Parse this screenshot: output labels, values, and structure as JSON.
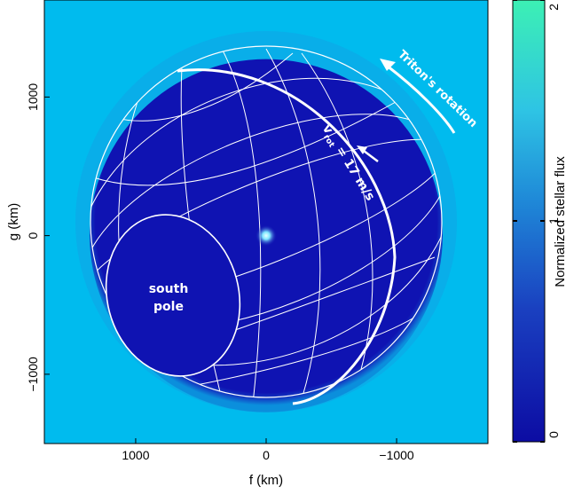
{
  "chart_data": {
    "type": "heatmap",
    "title": "",
    "xlabel": "f (km)",
    "ylabel": "g (km)",
    "xlim": [
      1700,
      -1700
    ],
    "ylim": [
      -1500,
      1700
    ],
    "x_ticks": [
      1000,
      0,
      -1000
    ],
    "y_ticks": [
      1000,
      0,
      -1000
    ],
    "x_tick_labels": [
      "1000",
      "0",
      "−1000"
    ],
    "y_tick_labels": [
      "1000",
      "0",
      "−1000"
    ],
    "colorbar": {
      "label": "Normalized stellar flux",
      "range": [
        0,
        2
      ],
      "ticks": [
        0,
        1,
        2
      ],
      "tick_labels": [
        "0",
        "1",
        "2"
      ],
      "colors": [
        "#0c0ca3",
        "#1a40c0",
        "#1f8ad8",
        "#2ec4e4",
        "#3cf0b4"
      ]
    },
    "disk": {
      "center": [
        0,
        0
      ],
      "radius_km": 1353,
      "inner_flux": 0.15,
      "outer_flux": 1.0
    },
    "central_flash": {
      "f": 0,
      "g": 0
    },
    "background_color": "#00bbee",
    "annotations": {
      "south_pole_line1": "south",
      "south_pole_line2": "pole",
      "vrot_main": "v",
      "vrot_sub": "rot",
      "vrot_value": " = 17 m/s",
      "rotation_label": "Triton's rotation"
    }
  }
}
